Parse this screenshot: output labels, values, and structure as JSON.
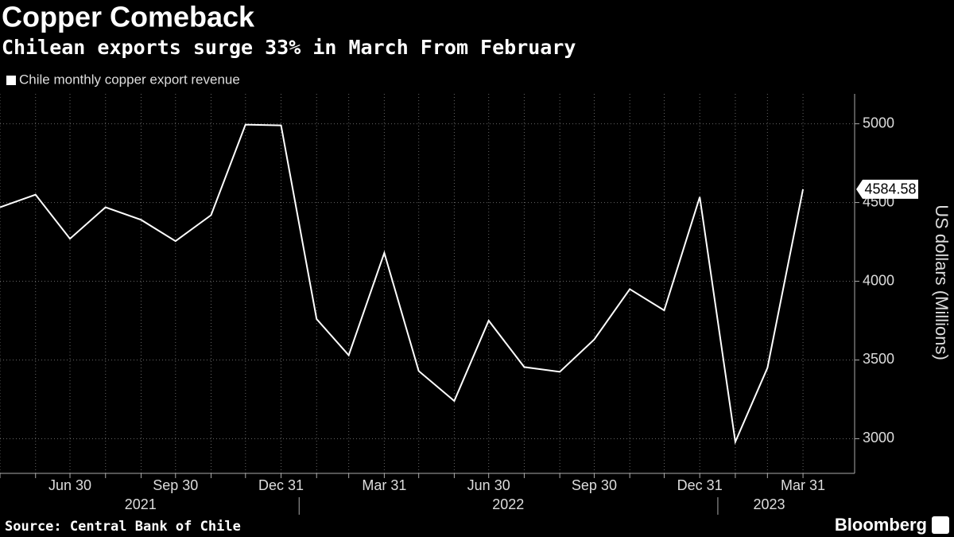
{
  "chart_data": {
    "type": "line",
    "title": "Copper Comeback",
    "subtitle": "Chilean exports surge 33% in March From February",
    "y_label": "US dollars (Millions)",
    "source": "Source: Central Bank of Chile",
    "brand": "Bloomberg",
    "x": [
      "2021-04-30",
      "2021-05-31",
      "2021-06-30",
      "2021-07-31",
      "2021-08-31",
      "2021-09-30",
      "2021-10-31",
      "2021-11-30",
      "2021-12-31",
      "2022-01-31",
      "2022-02-28",
      "2022-03-31",
      "2022-04-30",
      "2022-05-31",
      "2022-06-30",
      "2022-07-31",
      "2022-08-31",
      "2022-09-30",
      "2022-10-31",
      "2022-11-30",
      "2022-12-31",
      "2023-01-31",
      "2023-02-28",
      "2023-03-31"
    ],
    "series": [
      {
        "name": "Chile monthly copper export revenue",
        "color": "#ffffff",
        "values": [
          4470,
          4550,
          4270,
          4470,
          4390,
          4255,
          4420,
          4995,
          4990,
          3760,
          3530,
          4180,
          3430,
          3240,
          3750,
          3455,
          3425,
          3630,
          3950,
          3815,
          4535,
          2980,
          3450,
          4584.58
        ]
      }
    ],
    "last_value_label": 4584.58,
    "xlim": [
      "2021-04-30",
      "2023-05-15"
    ],
    "xticks": [
      {
        "value": "2021-06-30",
        "label": "Jun 30"
      },
      {
        "value": "2021-09-30",
        "label": "Sep 30"
      },
      {
        "value": "2021-12-31",
        "label": "Dec 31"
      },
      {
        "value": "2022-03-31",
        "label": "Mar 31"
      },
      {
        "value": "2022-06-30",
        "label": "Jun 30"
      },
      {
        "value": "2022-09-30",
        "label": "Sep 30"
      },
      {
        "value": "2022-12-31",
        "label": "Dec 31"
      },
      {
        "value": "2023-03-31",
        "label": "Mar 31"
      }
    ],
    "x_years": [
      "2021",
      "2022",
      "2023"
    ],
    "ylim": [
      2780,
      5190
    ],
    "yticks": [
      3000,
      3500,
      4000,
      4500,
      5000
    ],
    "grid": true
  }
}
